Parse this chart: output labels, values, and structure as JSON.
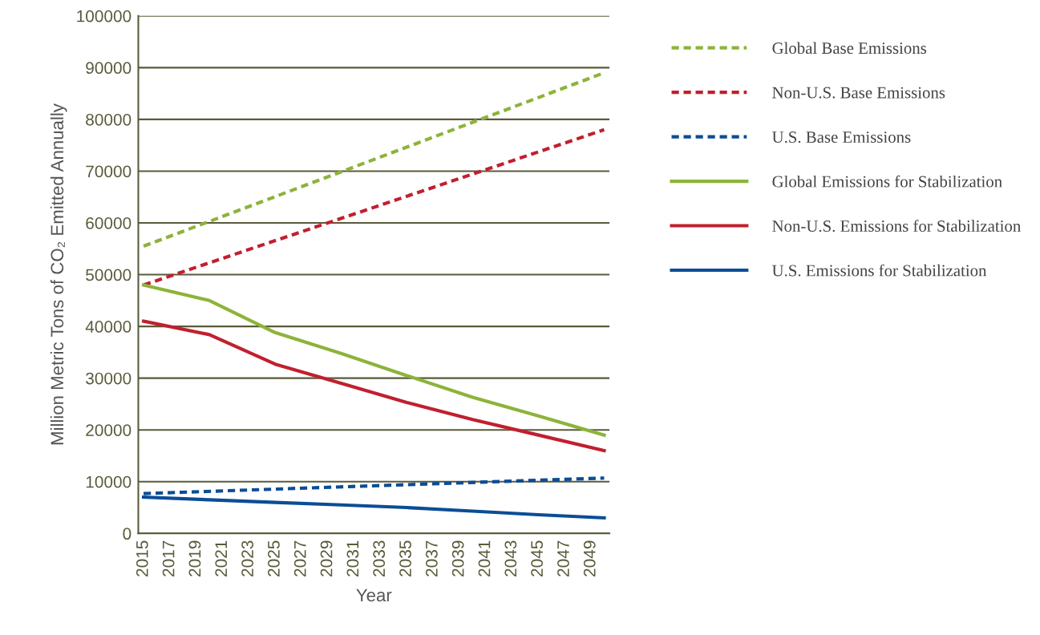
{
  "chart_data": {
    "type": "line",
    "xlabel": "Year",
    "ylabel": "Million Metric Tons of CO₂ Emitted Annually",
    "xlim": [
      2014.6,
      2050.4
    ],
    "xticks": [
      2015,
      2017,
      2019,
      2021,
      2023,
      2025,
      2027,
      2029,
      2031,
      2033,
      2035,
      2037,
      2039,
      2041,
      2043,
      2045,
      2047,
      2049
    ],
    "ylim": [
      0,
      100000
    ],
    "yticks": [
      0,
      10000,
      20000,
      30000,
      40000,
      50000,
      60000,
      70000,
      80000,
      90000,
      100000
    ],
    "grid": "y",
    "legend": "right",
    "marker": "none",
    "series": [
      {
        "name": "Global Base Emissions",
        "color": "#8db33a",
        "line_style": "dashed",
        "x": [
          2015,
          2050
        ],
        "values": [
          55500,
          89000
        ]
      },
      {
        "name": "Non-U.S. Base Emissions",
        "color": "#c0202f",
        "line_style": "dashed",
        "x": [
          2015,
          2050
        ],
        "values": [
          48000,
          78000
        ]
      },
      {
        "name": "U.S. Base Emissions",
        "color": "#0b4d96",
        "line_style": "dashed",
        "x": [
          2015,
          2050
        ],
        "values": [
          7700,
          10700
        ]
      },
      {
        "name": "Global Emissions for Stabilization",
        "color": "#8db33a",
        "line_style": "solid",
        "x": [
          2015,
          2020,
          2025,
          2030,
          2035,
          2040,
          2045,
          2050
        ],
        "values": [
          48000,
          45000,
          38800,
          34800,
          30500,
          26300,
          22700,
          19000
        ]
      },
      {
        "name": "Non-U.S. Emissions for Stabilization",
        "color": "#c0202f",
        "line_style": "solid",
        "x": [
          2015,
          2020,
          2025,
          2030,
          2035,
          2040,
          2045,
          2050
        ],
        "values": [
          41000,
          38400,
          32700,
          29000,
          25300,
          22000,
          19000,
          16000
        ]
      },
      {
        "name": "U.S. Emissions for Stabilization",
        "color": "#0b4d96",
        "line_style": "solid",
        "x": [
          2015,
          2020,
          2025,
          2030,
          2035,
          2040,
          2045,
          2050
        ],
        "values": [
          7000,
          6500,
          6000,
          5500,
          5000,
          4300,
          3600,
          3000
        ]
      }
    ]
  }
}
